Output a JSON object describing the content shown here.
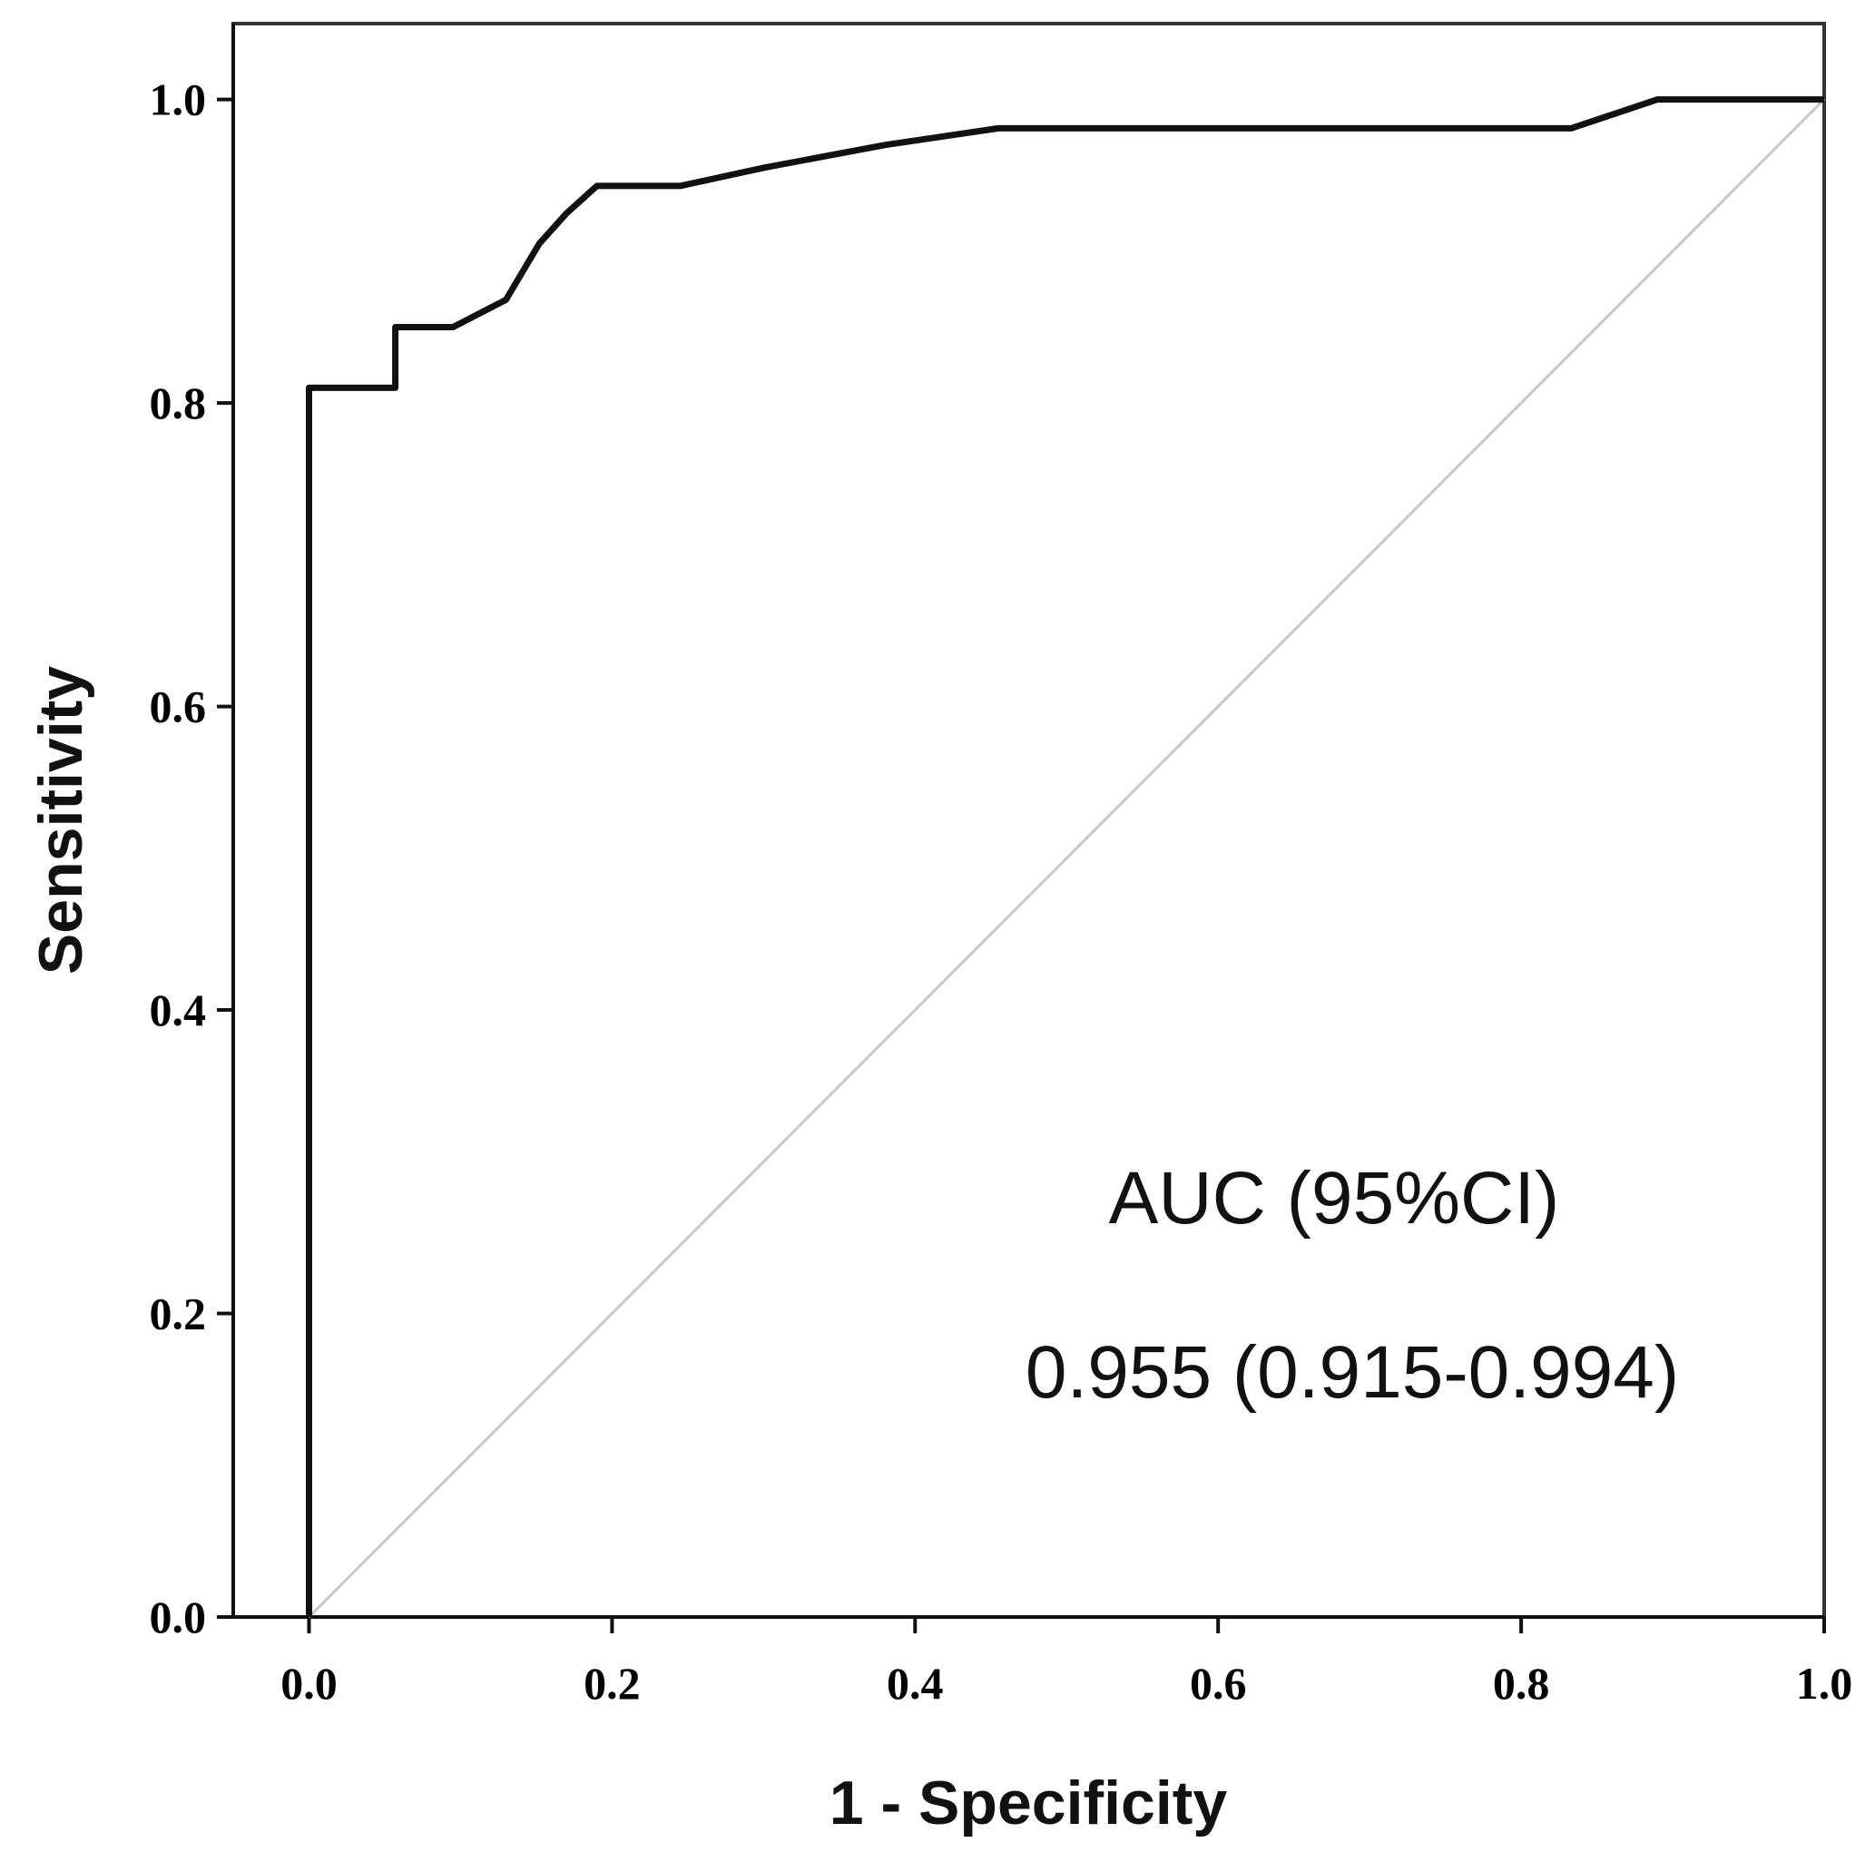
{
  "chart_data": {
    "type": "line",
    "title": "",
    "xlabel": "1 - Specificity",
    "ylabel": "Sensitivity",
    "xlim": [
      -0.05,
      1.0
    ],
    "ylim": [
      0.0,
      1.05
    ],
    "x_ticks": [
      "0.0",
      "0.2",
      "0.4",
      "0.6",
      "0.8",
      "1.0"
    ],
    "y_ticks": [
      "0.0",
      "0.2",
      "0.4",
      "0.6",
      "0.8",
      "1.0"
    ],
    "grid": false,
    "legend": "none",
    "series": [
      {
        "kind": "roc-curve",
        "color": "#111111",
        "x": [
          0.0,
          0.0,
          0.057,
          0.057,
          0.095,
          0.13,
          0.152,
          0.17,
          0.19,
          0.245,
          0.3,
          0.38,
          0.455,
          0.6,
          0.7,
          0.833,
          0.89,
          1.0
        ],
        "y": [
          0.0,
          0.81,
          0.81,
          0.85,
          0.85,
          0.868,
          0.905,
          0.925,
          0.943,
          0.943,
          0.955,
          0.97,
          0.981,
          0.981,
          0.981,
          0.981,
          1.0,
          1.0
        ]
      },
      {
        "kind": "reference-line",
        "color": "#c8c8c8",
        "x": [
          0.0,
          1.0
        ],
        "y": [
          0.0,
          1.0
        ]
      }
    ],
    "annotations": [
      "AUC (95%CI)",
      "0.955 (0.915-0.994)"
    ]
  }
}
